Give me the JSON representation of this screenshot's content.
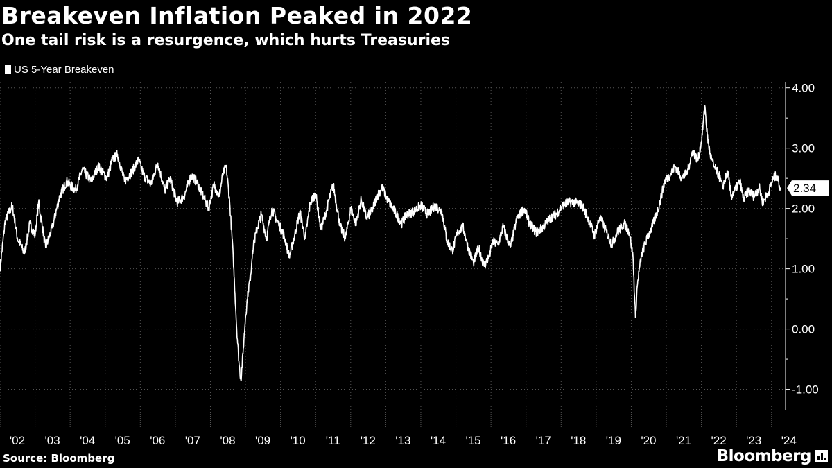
{
  "header": {
    "title": "Breakeven Inflation Peaked in 2022",
    "subtitle": "One tail risk is a resurgence, which hurts Treasuries"
  },
  "legend": {
    "label": "US 5-Year Breakeven"
  },
  "footer": {
    "source": "Source: Bloomberg",
    "brand": "Bloomberg"
  },
  "colors": {
    "background": "#000000",
    "line": "#ffffff",
    "grid": "#555555"
  },
  "chart_data": {
    "type": "line",
    "title": "Breakeven Inflation Peaked in 2022",
    "subtitle": "One tail risk is a resurgence, which hurts Treasuries",
    "xlabel": "",
    "ylabel": "",
    "ylim": [
      -1.35,
      4.1
    ],
    "xlim": [
      2002.0,
      2024.4
    ],
    "y_ticks": [
      -1.0,
      0.0,
      1.0,
      2.0,
      3.0,
      4.0
    ],
    "y_tick_labels": [
      "-1.00",
      "0.00",
      "1.00",
      "2.00",
      "3.00",
      "4.00"
    ],
    "x_ticks": [
      2002,
      2003,
      2004,
      2005,
      2006,
      2007,
      2008,
      2009,
      2010,
      2011,
      2012,
      2013,
      2014,
      2015,
      2016,
      2017,
      2018,
      2019,
      2020,
      2021,
      2022,
      2023,
      2024
    ],
    "x_tick_labels": [
      "'02",
      "'03",
      "'04",
      "'05",
      "'06",
      "'07",
      "'08",
      "'09",
      "'10",
      "'11",
      "'12",
      "'13",
      "'14",
      "'15",
      "'16",
      "'17",
      "'18",
      "'19",
      "'20",
      "'21",
      "'22",
      "'23",
      "'24"
    ],
    "grid": true,
    "legend_position": "top-left",
    "last_value_label": "2.34",
    "series": [
      {
        "name": "US 5-Year Breakeven",
        "x": [
          2002.0,
          2002.15,
          2002.35,
          2002.5,
          2002.7,
          2002.85,
          2003.0,
          2003.1,
          2003.3,
          2003.5,
          2003.7,
          2003.9,
          2004.15,
          2004.35,
          2004.6,
          2004.8,
          2005.05,
          2005.2,
          2005.35,
          2005.55,
          2005.75,
          2005.95,
          2006.1,
          2006.3,
          2006.5,
          2006.7,
          2006.85,
          2007.05,
          2007.25,
          2007.45,
          2007.6,
          2007.8,
          2007.95,
          2008.1,
          2008.25,
          2008.35,
          2008.45,
          2008.55,
          2008.65,
          2008.75,
          2008.82,
          2008.87,
          2008.93,
          2009.0,
          2009.08,
          2009.15,
          2009.2,
          2009.3,
          2009.45,
          2009.6,
          2009.75,
          2009.9,
          2010.1,
          2010.25,
          2010.4,
          2010.55,
          2010.7,
          2010.85,
          2011.0,
          2011.15,
          2011.3,
          2011.5,
          2011.7,
          2011.85,
          2012.0,
          2012.15,
          2012.3,
          2012.45,
          2012.6,
          2012.75,
          2012.9,
          2013.05,
          2013.25,
          2013.45,
          2013.6,
          2013.8,
          2014.0,
          2014.2,
          2014.4,
          2014.6,
          2014.75,
          2014.9,
          2015.05,
          2015.2,
          2015.35,
          2015.5,
          2015.65,
          2015.8,
          2015.95,
          2016.05,
          2016.2,
          2016.35,
          2016.55,
          2016.75,
          2016.95,
          2017.1,
          2017.3,
          2017.5,
          2017.7,
          2017.85,
          2018.05,
          2018.2,
          2018.4,
          2018.6,
          2018.8,
          2018.95,
          2019.1,
          2019.3,
          2019.45,
          2019.6,
          2019.8,
          2019.95,
          2020.05,
          2020.12,
          2020.17,
          2020.22,
          2020.3,
          2020.45,
          2020.6,
          2020.8,
          2020.95,
          2021.1,
          2021.25,
          2021.45,
          2021.6,
          2021.75,
          2021.9,
          2022.0,
          2022.1,
          2022.17,
          2022.25,
          2022.35,
          2022.5,
          2022.6,
          2022.75,
          2022.85,
          2022.95,
          2023.1,
          2023.2,
          2023.35,
          2023.5,
          2023.65,
          2023.75,
          2023.9,
          2024.05,
          2024.15,
          2024.25
        ],
        "values": [
          1.0,
          1.8,
          2.05,
          1.5,
          1.25,
          1.75,
          1.55,
          2.1,
          1.35,
          1.7,
          2.2,
          2.45,
          2.3,
          2.65,
          2.45,
          2.7,
          2.5,
          2.8,
          2.9,
          2.45,
          2.6,
          2.8,
          2.55,
          2.4,
          2.75,
          2.3,
          2.5,
          2.1,
          2.2,
          2.55,
          2.45,
          2.2,
          2.0,
          2.4,
          2.2,
          2.55,
          2.7,
          2.1,
          1.2,
          0.0,
          -0.6,
          -0.85,
          -0.4,
          0.2,
          0.65,
          0.9,
          1.3,
          1.6,
          1.9,
          1.5,
          2.0,
          1.8,
          1.55,
          1.2,
          1.55,
          1.95,
          1.5,
          2.1,
          2.25,
          1.65,
          1.95,
          2.4,
          1.7,
          1.5,
          2.0,
          1.75,
          2.15,
          1.85,
          1.95,
          2.2,
          2.35,
          2.15,
          1.95,
          1.75,
          1.9,
          1.95,
          2.05,
          1.9,
          2.05,
          1.95,
          1.45,
          1.3,
          1.6,
          1.7,
          1.35,
          1.1,
          1.35,
          1.05,
          1.2,
          1.45,
          1.4,
          1.7,
          1.35,
          1.85,
          2.0,
          1.75,
          1.6,
          1.7,
          1.85,
          1.9,
          2.05,
          2.1,
          2.1,
          2.05,
          1.8,
          1.55,
          1.85,
          1.6,
          1.4,
          1.6,
          1.75,
          1.6,
          1.2,
          0.2,
          0.7,
          0.95,
          1.25,
          1.5,
          1.7,
          2.05,
          2.45,
          2.55,
          2.7,
          2.5,
          2.6,
          2.95,
          2.8,
          3.1,
          3.7,
          3.2,
          2.9,
          2.7,
          2.55,
          2.35,
          2.6,
          2.2,
          2.3,
          2.45,
          2.15,
          2.3,
          2.2,
          2.35,
          2.1,
          2.25,
          2.5,
          2.55,
          2.34
        ]
      }
    ]
  }
}
